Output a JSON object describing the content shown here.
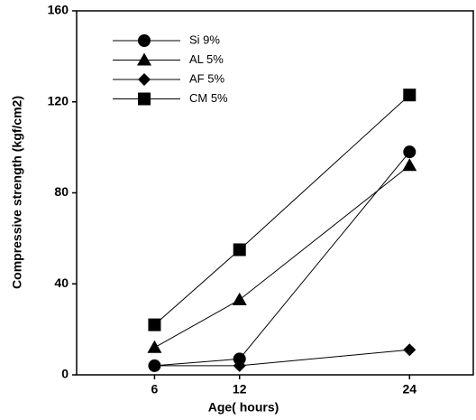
{
  "chart_data": {
    "type": "line",
    "xlabel": "Age( hours)",
    "ylabel": "Compressive strength (kgf/cm2)",
    "x": [
      6,
      12,
      24
    ],
    "series": [
      {
        "name": "Si 9%",
        "color": "#000000",
        "marker": "circle",
        "values": [
          4,
          7,
          98
        ]
      },
      {
        "name": "AL 5%",
        "color": "#000000",
        "marker": "triangle",
        "values": [
          12,
          33,
          92
        ]
      },
      {
        "name": "AF 5%",
        "color": "#000000",
        "marker": "diamond",
        "values": [
          4,
          4,
          11
        ]
      },
      {
        "name": "CM 5%",
        "color": "#000000",
        "marker": "square",
        "values": [
          22,
          55,
          123
        ]
      }
    ],
    "xlim": [
      0.5,
      28.5
    ],
    "xticks": [
      6,
      12,
      24
    ],
    "ylim": [
      0,
      160
    ],
    "yticks": [
      0,
      40,
      80,
      120,
      160
    ],
    "legend": "upper-left"
  }
}
